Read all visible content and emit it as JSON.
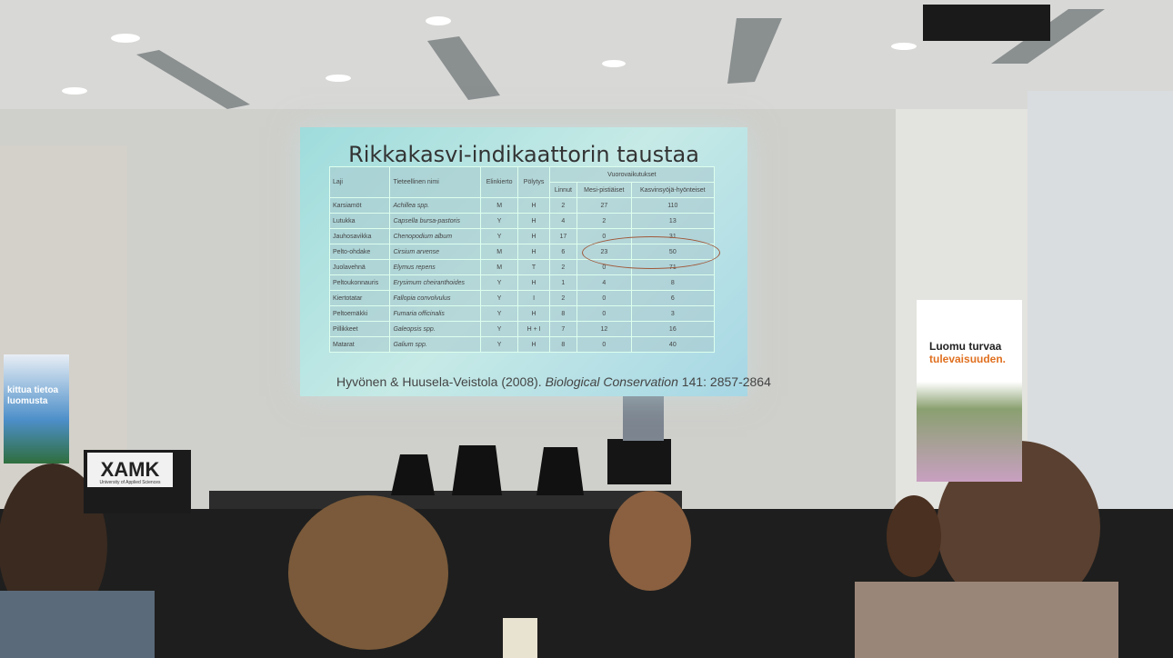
{
  "slide": {
    "title": "Rikkakasvi-indikaattorin taustaa",
    "table": {
      "headers": [
        "Laji",
        "Tieteellinen nimi",
        "Elinkierto",
        "Pölytys"
      ],
      "group_header": "Vuorovaikutukset",
      "sub_headers": [
        "Linnut",
        "Mesi-pistiäiset",
        "Kasvinsyöjä-hyönteiset"
      ],
      "rows": [
        [
          "Karsiamöt",
          "Achillea spp.",
          "M",
          "H",
          "2",
          "27",
          "110"
        ],
        [
          "Lutukka",
          "Capsella bursa-pastoris",
          "Y",
          "H",
          "4",
          "2",
          "13"
        ],
        [
          "Jauhosavikka",
          "Chenopodium album",
          "Y",
          "H",
          "17",
          "0",
          "31"
        ],
        [
          "Pelto-ohdake",
          "Cirsium arvense",
          "M",
          "H",
          "6",
          "23",
          "50"
        ],
        [
          "Juolavehnä",
          "Elymus repens",
          "M",
          "T",
          "2",
          "0",
          "71"
        ],
        [
          "Peltoukonnauris",
          "Erysimum cheiranthoides",
          "Y",
          "H",
          "1",
          "4",
          "8"
        ],
        [
          "Kiertotatar",
          "Fallopia convolvulus",
          "Y",
          "I",
          "2",
          "0",
          "6"
        ],
        [
          "Peltoemäkki",
          "Fumaria officinalis",
          "Y",
          "H",
          "8",
          "0",
          "3"
        ],
        [
          "Pillikkeet",
          "Galeopsis spp.",
          "Y",
          "H + I",
          "7",
          "12",
          "16"
        ],
        [
          "Matarat",
          "Galium spp.",
          "Y",
          "H",
          "8",
          "0",
          "40"
        ]
      ]
    },
    "citation_authors": "Hyvönen & Huusela-Veistola (2008).",
    "citation_journal": "Biological Conservation",
    "citation_pages": "141: 2857-2864"
  },
  "banner": {
    "line1": "Luomu turvaa",
    "line2": "tulevaisuuden."
  },
  "podium": {
    "logo": "XAMK",
    "subtitle": "University of Applied Sciences"
  },
  "poster": {
    "line1": "kittua tietoa",
    "line2": "luomusta"
  }
}
